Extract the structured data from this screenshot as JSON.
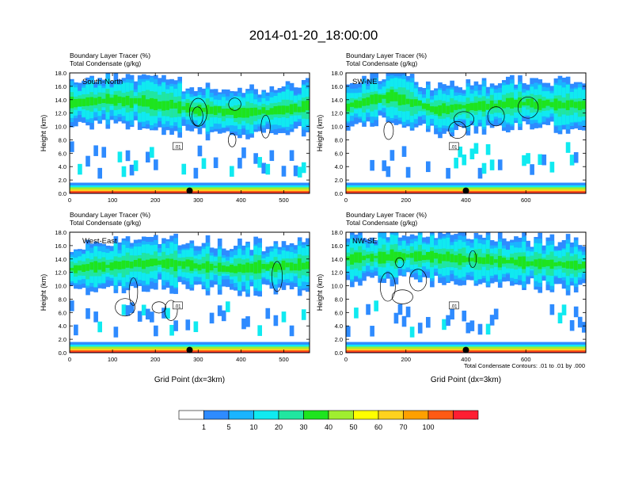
{
  "title": "2014-01-20_18:00:00",
  "footnote": "Total Condensate Contours: .01 to .01 by .000",
  "colorbar": {
    "labels": [
      "1",
      "5",
      "10",
      "20",
      "30",
      "40",
      "50",
      "60",
      "70",
      "100"
    ],
    "colors": [
      "#ffffff",
      "#2e8bff",
      "#1ab4ff",
      "#10eaf0",
      "#20e6a0",
      "#1ee41e",
      "#a0ee30",
      "#ffff00",
      "#ffd21e",
      "#ffa000",
      "#ff5a14",
      "#ff1e32"
    ]
  },
  "chart_data": [
    {
      "type": "heatmap",
      "panel_label": "South-North",
      "title_lines": [
        "Boundary Layer Tracer    (%)",
        "Total Condensate    (g/kg)"
      ],
      "ylabel": "Height (km)",
      "xlabel": "",
      "xlim": [
        0,
        560
      ],
      "ylim": [
        0,
        18
      ],
      "xticks": [
        "0",
        "100",
        "200",
        "300",
        "400",
        "500"
      ],
      "xtick_values": [
        0,
        100,
        200,
        300,
        400,
        500
      ],
      "yticks": [
        "0.0",
        "2.0",
        "4.0",
        "6.0",
        "8.0",
        "10.0",
        "12.0",
        "14.0",
        "16.0",
        "18.0"
      ],
      "contour_label": ".01",
      "marker_x": 280,
      "cloud_band": [
        [
          0,
          13.5
        ],
        [
          100,
          14.0
        ],
        [
          200,
          13.5
        ],
        [
          300,
          12.5
        ],
        [
          400,
          12.0
        ],
        [
          500,
          12.5
        ],
        [
          560,
          13.0
        ]
      ]
    },
    {
      "type": "heatmap",
      "panel_label": "SW-NE",
      "title_lines": [
        "Boundary Layer Tracer    (%)",
        "Total Condensate    (g/kg)"
      ],
      "ylabel": "Height (km)",
      "xlabel": "",
      "xlim": [
        0,
        800
      ],
      "ylim": [
        0,
        18
      ],
      "xticks": [
        "0",
        "200",
        "400",
        "600"
      ],
      "xtick_values": [
        0,
        200,
        400,
        600
      ],
      "yticks": [
        "0.0",
        "2.0",
        "4.0",
        "6.0",
        "8.0",
        "10.0",
        "12.0",
        "14.0",
        "16.0",
        "18.0"
      ],
      "contour_label": ".01",
      "marker_x": 400,
      "cloud_band": [
        [
          0,
          13.0
        ],
        [
          150,
          14.5
        ],
        [
          300,
          12.5
        ],
        [
          450,
          13.0
        ],
        [
          600,
          13.5
        ],
        [
          800,
          13.0
        ]
      ]
    },
    {
      "type": "heatmap",
      "panel_label": "West-East",
      "title_lines": [
        "Boundary Layer Tracer    (%)",
        "Total Condensate    (g/kg)"
      ],
      "ylabel": "Height (km)",
      "xlabel": "Grid Point (dx=3km)",
      "xlim": [
        0,
        560
      ],
      "ylim": [
        0,
        18
      ],
      "xticks": [
        "0",
        "100",
        "200",
        "300",
        "400",
        "500"
      ],
      "xtick_values": [
        0,
        100,
        200,
        300,
        400,
        500
      ],
      "yticks": [
        "0.0",
        "2.0",
        "4.0",
        "6.0",
        "8.0",
        "10.0",
        "12.0",
        "14.0",
        "16.0",
        "18.0"
      ],
      "contour_label": ".01",
      "marker_x": 280,
      "cloud_band": [
        [
          0,
          12.5
        ],
        [
          100,
          13.0
        ],
        [
          200,
          13.5
        ],
        [
          300,
          13.0
        ],
        [
          400,
          12.5
        ],
        [
          500,
          13.0
        ],
        [
          560,
          13.0
        ]
      ]
    },
    {
      "type": "heatmap",
      "panel_label": "NW-SE",
      "title_lines": [
        "Boundary Layer Tracer    (%)",
        "Total Condensate    (g/kg)"
      ],
      "ylabel": "Height (km)",
      "xlabel": "Grid Point (dx=3km)",
      "xlim": [
        0,
        800
      ],
      "ylim": [
        0,
        18
      ],
      "xticks": [
        "0",
        "200",
        "400",
        "600"
      ],
      "xtick_values": [
        0,
        200,
        400,
        600
      ],
      "yticks": [
        "0.0",
        "2.0",
        "4.0",
        "6.0",
        "8.0",
        "10.0",
        "12.0",
        "14.0",
        "16.0",
        "18.0"
      ],
      "contour_label": ".01",
      "marker_x": 400,
      "cloud_band": [
        [
          0,
          14.0
        ],
        [
          200,
          14.5
        ],
        [
          400,
          14.0
        ],
        [
          600,
          13.5
        ],
        [
          800,
          13.0
        ]
      ]
    }
  ]
}
